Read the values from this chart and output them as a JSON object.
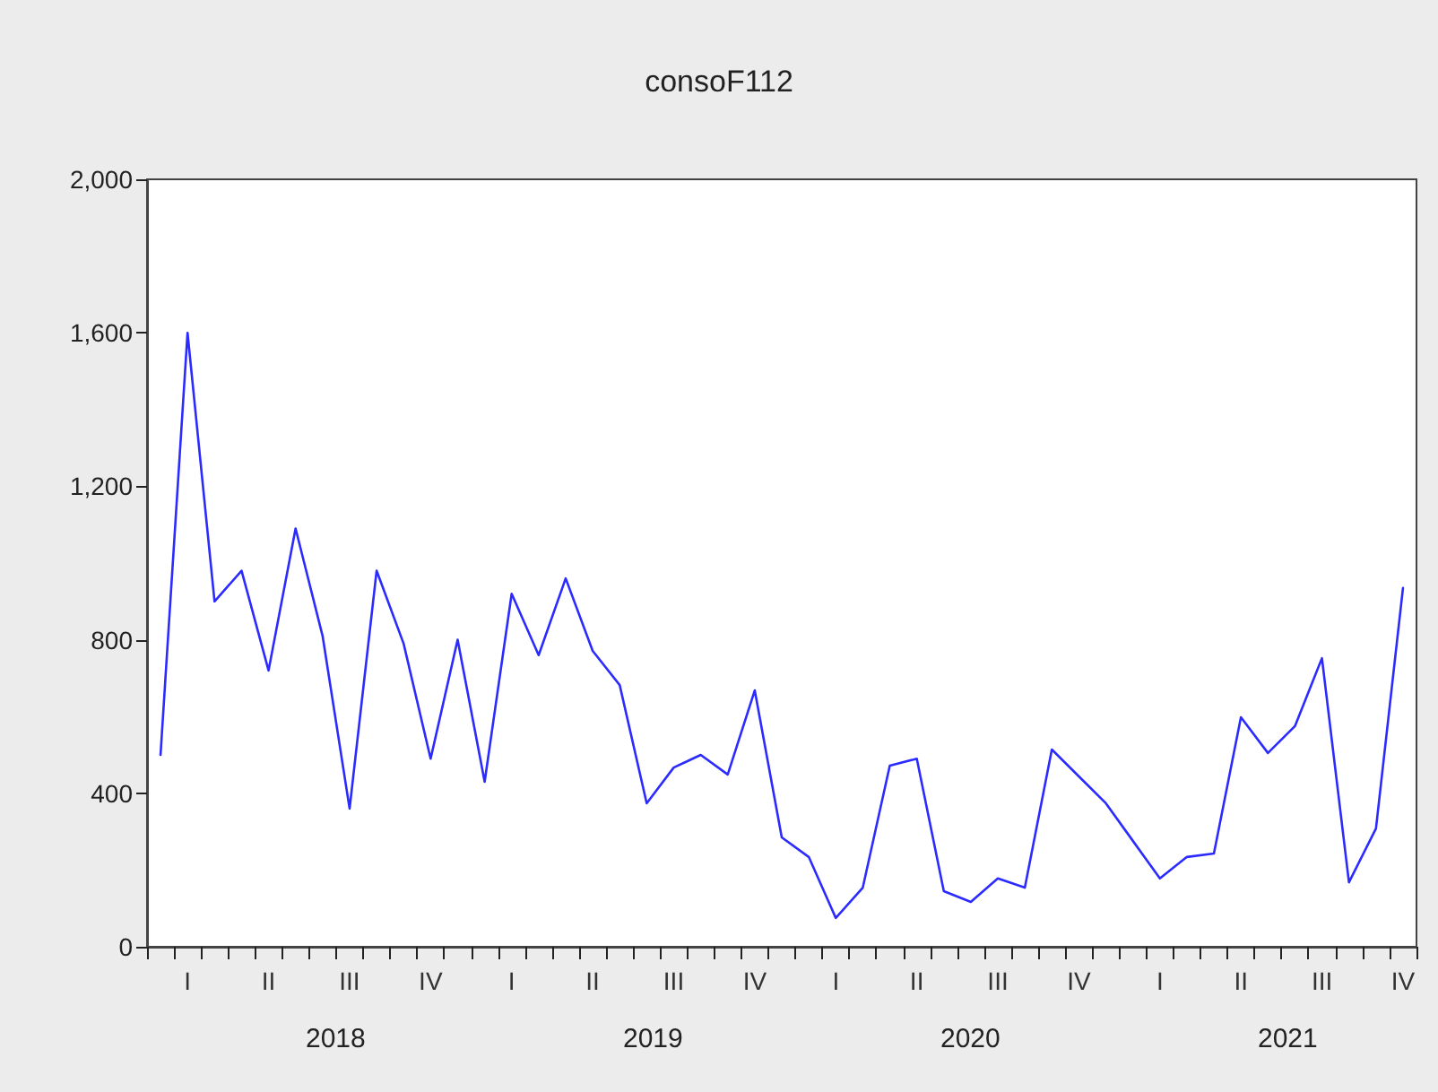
{
  "chart_data": {
    "type": "line",
    "title": "consoF112",
    "categories": [
      null,
      "I",
      null,
      null,
      "II",
      null,
      null,
      "III",
      null,
      null,
      "IV",
      null,
      null,
      "I",
      null,
      null,
      "II",
      null,
      null,
      "III",
      null,
      null,
      "IV",
      null,
      null,
      "I",
      null,
      null,
      "II",
      null,
      null,
      "III",
      null,
      null,
      "IV",
      null,
      null,
      "I",
      null,
      null,
      "II",
      null,
      null,
      "III",
      null,
      null,
      "IV"
    ],
    "series": [
      {
        "color": "#2b2bff",
        "values": [
          500,
          1600,
          900,
          980,
          720,
          1090,
          810,
          360,
          980,
          790,
          490,
          800,
          430,
          920,
          760,
          960,
          771,
          682,
          374,
          467,
          500,
          449,
          668,
          285,
          234,
          75,
          154,
          472,
          490,
          145,
          117,
          178,
          154,
          514,
          444,
          374,
          276,
          178,
          234,
          243,
          598,
          505,
          575,
          752,
          168,
          308,
          935
        ]
      }
    ],
    "annotations": [
      "2018",
      "2019",
      "2020",
      "2021"
    ],
    "ylim": [
      0,
      2000
    ],
    "yticks": [
      0,
      400,
      800,
      {
        "value": 1200,
        "label": "1,200"
      },
      {
        "value": 1600,
        "label": "1,600"
      },
      {
        "value": 2000,
        "label": "2,000"
      }
    ],
    "grid": false,
    "marker": "none",
    "line_style": "solid"
  }
}
